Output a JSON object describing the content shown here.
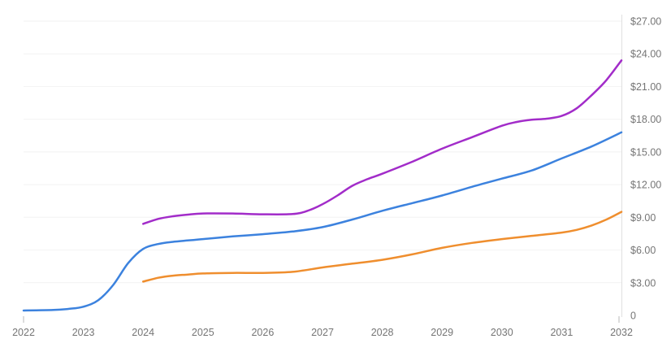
{
  "chart_data": {
    "type": "line",
    "title": "",
    "legend": "none",
    "grid": "horizontal",
    "x_axis": {
      "tick_labels": [
        "2022",
        "2023",
        "2024",
        "2025",
        "2026",
        "2027",
        "2028",
        "2029",
        "2030",
        "2031",
        "2032"
      ],
      "tick_values": [
        2022,
        2023,
        2024,
        2025,
        2026,
        2027,
        2028,
        2029,
        2030,
        2031,
        2032
      ],
      "range": [
        2022,
        2032
      ]
    },
    "y_axis": {
      "position": "right",
      "format": "currency",
      "tick_labels": [
        "0",
        "$3.00",
        "$6.00",
        "$9.00",
        "$12.00",
        "$15.00",
        "$18.00",
        "$21.00",
        "$24.00",
        "$27.00"
      ],
      "tick_values": [
        0,
        3,
        6,
        9,
        12,
        15,
        18,
        21,
        24,
        27
      ],
      "range": [
        0,
        27
      ]
    },
    "series": [
      {
        "name": "purple-line",
        "color": "#A22CC9",
        "points": [
          [
            2024,
            8.4
          ],
          [
            2024.25,
            8.85
          ],
          [
            2024.5,
            9.1
          ],
          [
            2024.75,
            9.25
          ],
          [
            2025,
            9.35
          ],
          [
            2025.5,
            9.35
          ],
          [
            2026,
            9.28
          ],
          [
            2026.5,
            9.3
          ],
          [
            2026.75,
            9.6
          ],
          [
            2027,
            10.2
          ],
          [
            2027.25,
            11.0
          ],
          [
            2027.5,
            11.9
          ],
          [
            2027.75,
            12.5
          ],
          [
            2028,
            13.0
          ],
          [
            2028.5,
            14.1
          ],
          [
            2029,
            15.3
          ],
          [
            2029.5,
            16.35
          ],
          [
            2030,
            17.4
          ],
          [
            2030.25,
            17.75
          ],
          [
            2030.5,
            17.95
          ],
          [
            2030.75,
            18.05
          ],
          [
            2031,
            18.3
          ],
          [
            2031.25,
            19.0
          ],
          [
            2031.5,
            20.2
          ],
          [
            2031.75,
            21.6
          ],
          [
            2032,
            23.4
          ]
        ]
      },
      {
        "name": "blue-line",
        "color": "#3C82DE",
        "points": [
          [
            2022,
            0.45
          ],
          [
            2022.5,
            0.5
          ],
          [
            2022.75,
            0.6
          ],
          [
            2023,
            0.8
          ],
          [
            2023.25,
            1.4
          ],
          [
            2023.5,
            2.8
          ],
          [
            2023.75,
            4.8
          ],
          [
            2024,
            6.1
          ],
          [
            2024.25,
            6.55
          ],
          [
            2024.5,
            6.75
          ],
          [
            2025,
            7.0
          ],
          [
            2025.5,
            7.25
          ],
          [
            2026,
            7.45
          ],
          [
            2026.5,
            7.7
          ],
          [
            2027,
            8.1
          ],
          [
            2027.5,
            8.8
          ],
          [
            2028,
            9.6
          ],
          [
            2028.5,
            10.3
          ],
          [
            2029,
            11.0
          ],
          [
            2029.5,
            11.8
          ],
          [
            2030,
            12.55
          ],
          [
            2030.5,
            13.3
          ],
          [
            2031,
            14.4
          ],
          [
            2031.5,
            15.5
          ],
          [
            2032,
            16.8
          ]
        ]
      },
      {
        "name": "orange-line",
        "color": "#EF8E2E",
        "points": [
          [
            2024,
            3.1
          ],
          [
            2024.25,
            3.45
          ],
          [
            2024.5,
            3.65
          ],
          [
            2024.75,
            3.75
          ],
          [
            2025,
            3.85
          ],
          [
            2025.5,
            3.9
          ],
          [
            2026,
            3.9
          ],
          [
            2026.5,
            4.0
          ],
          [
            2027,
            4.4
          ],
          [
            2027.5,
            4.75
          ],
          [
            2028,
            5.1
          ],
          [
            2028.5,
            5.6
          ],
          [
            2029,
            6.2
          ],
          [
            2029.5,
            6.65
          ],
          [
            2030,
            7.0
          ],
          [
            2030.5,
            7.3
          ],
          [
            2031,
            7.6
          ],
          [
            2031.25,
            7.85
          ],
          [
            2031.5,
            8.25
          ],
          [
            2031.75,
            8.8
          ],
          [
            2032,
            9.5
          ]
        ]
      }
    ]
  },
  "colors": {
    "background": "#ffffff",
    "gridline": "#f2f2f2",
    "axis_line": "#e0e0e0",
    "tick_mark": "#b8b8b8",
    "label_text": "#757575"
  }
}
